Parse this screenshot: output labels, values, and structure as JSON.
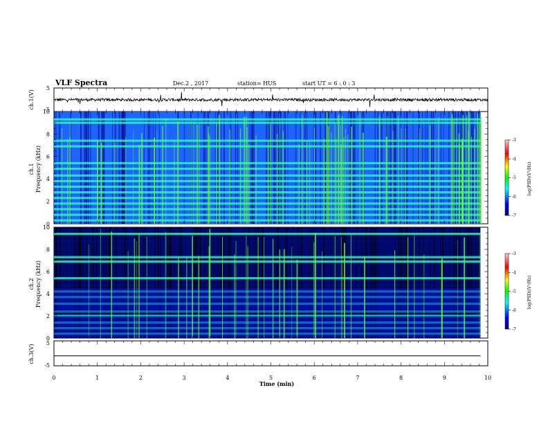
{
  "header": {
    "title": "VLF Spectra",
    "date": "Dec.2 , 2017",
    "station": "station= HUS",
    "start": "start UT =  6 : 0 : 3"
  },
  "chart_data": [
    {
      "type": "line",
      "panel": "ch1-waveform",
      "ylabel": "ch.1(V)",
      "ylim": [
        -5,
        5
      ],
      "yticks": [
        5,
        -5
      ],
      "x": [
        0,
        10
      ],
      "y": [
        0,
        0
      ],
      "note_color": "#000000"
    },
    {
      "type": "heatmap",
      "panel": "ch1-spectrogram",
      "ylabel_channel": "ch.1",
      "ylabel": "Frequency (kHz)",
      "ylim": [
        0,
        10
      ],
      "yticks": [
        0,
        2,
        4,
        6,
        8,
        10
      ],
      "xlim": [
        0,
        9.83
      ],
      "band_freqs_khz": [
        0.3,
        0.8,
        1.3,
        1.8,
        2.3,
        2.8,
        3.3,
        3.8,
        4.3,
        4.9,
        5.4,
        6.9,
        7.4,
        9.0,
        9.3
      ],
      "colorbar": {
        "label": "log(PSD)(V²/Hz)",
        "ticks": [
          -3,
          -4,
          -5,
          -6,
          -7
        ],
        "range": [
          -7,
          -3
        ]
      }
    },
    {
      "type": "heatmap",
      "panel": "ch2-spectrogram",
      "ylabel_channel": "ch.2",
      "ylabel": "Frequency (kHz)",
      "ylim": [
        0,
        10
      ],
      "yticks": [
        0,
        2,
        4,
        6,
        8,
        10
      ],
      "xlim": [
        0,
        9.83
      ],
      "band_freqs_khz": [
        0.4,
        0.9,
        1.4,
        2.0,
        2.4,
        3.1,
        3.7,
        4.2,
        5.4,
        6.9,
        7.3,
        9.4
      ],
      "colorbar": {
        "label": "log(PSD)(V²/Hz)",
        "ticks": [
          -3,
          -4,
          -5,
          -6,
          -7
        ],
        "range": [
          -7,
          -3
        ]
      }
    },
    {
      "type": "line",
      "panel": "ch3-waveform",
      "ylabel": "ch.3(V)",
      "ylim": [
        -5,
        5
      ],
      "yticks": [
        5,
        -5
      ],
      "x": [
        0,
        9.83
      ],
      "y": [
        -1,
        -1
      ],
      "xlabel": "Time (min)",
      "xlim": [
        0,
        10
      ],
      "xticks": [
        0,
        1,
        2,
        3,
        4,
        5,
        6,
        7,
        8,
        9,
        10
      ]
    }
  ],
  "colors": {
    "spec_low": "#000a6e",
    "spec_mid": "#1e64ff",
    "spec_band": "#28ffb4",
    "spec_high": "#64ff3c"
  }
}
